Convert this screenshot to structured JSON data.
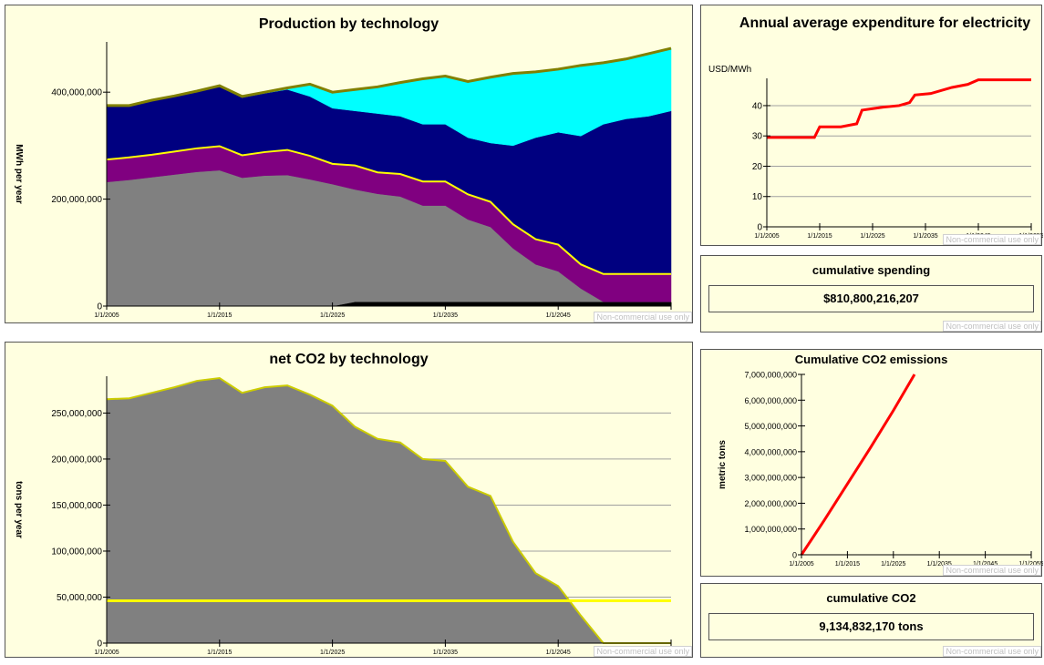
{
  "chart_data": [
    {
      "type": "area",
      "title": "Production by technology",
      "ylabel": "MWh per year",
      "grid": false,
      "x": [
        2005,
        2007,
        2009,
        2011,
        2013,
        2015,
        2017,
        2019,
        2021,
        2023,
        2025,
        2027,
        2029,
        2031,
        2033,
        2035,
        2037,
        2039,
        2041,
        2043,
        2045,
        2047,
        2049,
        2051,
        2053,
        2055
      ],
      "xlim": [
        2005,
        2055
      ],
      "xticks": [
        {
          "value": 2005,
          "label": "1/1/2005"
        },
        {
          "value": 2015,
          "label": "1/1/2015"
        },
        {
          "value": 2025,
          "label": "1/1/2025"
        },
        {
          "value": 2035,
          "label": "1/1/2035"
        },
        {
          "value": 2045,
          "label": "1/1/2045"
        },
        {
          "value": 2055,
          "label": "1/1/2055"
        }
      ],
      "ylim": [
        0,
        494000000
      ],
      "yticks": [
        0,
        {
          "value": 200000000,
          "label": "200,000,000"
        },
        {
          "value": 400000000,
          "label": "400,000,000"
        }
      ],
      "series": [
        {
          "color": "#000000",
          "values": [
            0,
            0,
            0,
            0,
            0,
            0,
            0,
            0,
            0,
            0,
            0,
            8000000,
            8000000,
            8000000,
            8000000,
            8000000,
            8000000,
            8000000,
            8000000,
            8000000,
            8000000,
            8000000,
            8000000,
            8000000,
            8000000,
            8000000
          ]
        },
        {
          "color": "#808080",
          "values": [
            232000000,
            236000000,
            241000000,
            246000000,
            251000000,
            254000000,
            240000000,
            244000000,
            245000000,
            237000000,
            228000000,
            210000000,
            202000000,
            197000000,
            180000000,
            180000000,
            154000000,
            140000000,
            100000000,
            70000000,
            57000000,
            25000000,
            0,
            0,
            0,
            0
          ]
        },
        {
          "color": "#800080",
          "line_color": "#ffff00",
          "values": [
            42000000,
            42000000,
            42000000,
            43000000,
            44000000,
            45000000,
            42000000,
            44000000,
            47000000,
            44000000,
            38000000,
            45000000,
            40000000,
            42000000,
            45000000,
            45000000,
            47000000,
            47000000,
            45000000,
            47000000,
            50000000,
            45000000,
            52000000,
            52000000,
            52000000,
            52000000
          ]
        },
        {
          "color": "#000080",
          "values": [
            101000000,
            97000000,
            102000000,
            104000000,
            107000000,
            111000000,
            108000000,
            110000000,
            113000000,
            111000000,
            104000000,
            102000000,
            110000000,
            108000000,
            107000000,
            107000000,
            106000000,
            110000000,
            147000000,
            190000000,
            210000000,
            240000000,
            280000000,
            290000000,
            295000000,
            305000000
          ]
        },
        {
          "color": "#00ffff",
          "line_color": "#808000",
          "values": [
            0,
            0,
            0,
            0,
            0,
            2000000,
            2000000,
            2000000,
            3000000,
            23000000,
            30000000,
            40000000,
            50000000,
            63000000,
            85000000,
            90000000,
            105000000,
            123000000,
            135000000,
            123000000,
            118000000,
            132000000,
            115000000,
            112000000,
            117000000,
            117000000
          ]
        }
      ]
    },
    {
      "type": "line",
      "title": "Annual average expenditure for electricity",
      "ylabel": "USD/MWh",
      "grid": true,
      "x": [
        2005,
        2014,
        2015,
        2019,
        2022,
        2023,
        2025,
        2027,
        2030,
        2032,
        2033,
        2036,
        2040,
        2043,
        2045,
        2055
      ],
      "xlim": [
        2005,
        2055
      ],
      "xticks": [
        {
          "value": 2005,
          "label": "1/1/2005"
        },
        {
          "value": 2015,
          "label": "1/1/2015"
        },
        {
          "value": 2025,
          "label": "1/1/2025"
        },
        {
          "value": 2035,
          "label": "1/1/2035"
        },
        {
          "value": 2045,
          "label": "1/1/2045"
        },
        {
          "value": 2055,
          "label": "1/1/2055"
        }
      ],
      "ylim": [
        0,
        49
      ],
      "yticks": [
        0,
        10,
        20,
        30,
        40
      ],
      "series": [
        {
          "color": "#ff0000",
          "values": [
            29.5,
            29.5,
            33,
            33,
            34,
            38.5,
            39,
            39.5,
            40,
            41,
            43.5,
            44,
            46,
            47,
            48.5,
            48.5
          ]
        }
      ]
    },
    {
      "type": "line",
      "title": "Cumulative CO2 emissions",
      "ylabel": "metric tons",
      "grid": false,
      "x": [
        2005,
        2010,
        2015,
        2020,
        2025,
        2029.6
      ],
      "xlim": [
        2005,
        2055
      ],
      "xticks": [
        {
          "value": 2005,
          "label": "1/1/2005"
        },
        {
          "value": 2015,
          "label": "1/1/2015"
        },
        {
          "value": 2025,
          "label": "1/1/2025"
        },
        {
          "value": 2035,
          "label": "1/1/2035"
        },
        {
          "value": 2045,
          "label": "1/1/2045"
        },
        {
          "value": 2055,
          "label": "1/1/2055"
        }
      ],
      "ylim": [
        0,
        7000000000
      ],
      "yticks": [
        0,
        {
          "value": 1000000000,
          "label": "1,000,000,000"
        },
        {
          "value": 2000000000,
          "label": "2,000,000,000"
        },
        {
          "value": 3000000000,
          "label": "3,000,000,000"
        },
        {
          "value": 4000000000,
          "label": "4,000,000,000"
        },
        {
          "value": 5000000000,
          "label": "5,000,000,000"
        },
        {
          "value": 6000000000,
          "label": "6,000,000,000"
        },
        {
          "value": 7000000000,
          "label": "7,000,000,000"
        }
      ],
      "series": [
        {
          "color": "#ff0000",
          "values": [
            0,
            1350000000,
            2750000000,
            4150000000,
            5600000000,
            7000000000
          ]
        }
      ]
    },
    {
      "type": "area",
      "title": "net CO2 by technology",
      "ylabel": "tons per year",
      "grid": true,
      "x": [
        2005,
        2007,
        2009,
        2011,
        2013,
        2015,
        2017,
        2019,
        2021,
        2023,
        2025,
        2027,
        2029,
        2031,
        2033,
        2035,
        2037,
        2039,
        2041,
        2043,
        2045,
        2047,
        2049,
        2051,
        2053,
        2055
      ],
      "xlim": [
        2005,
        2055
      ],
      "xticks": [
        {
          "value": 2005,
          "label": "1/1/2005"
        },
        {
          "value": 2015,
          "label": "1/1/2015"
        },
        {
          "value": 2025,
          "label": "1/1/2025"
        },
        {
          "value": 2035,
          "label": "1/1/2035"
        },
        {
          "value": 2045,
          "label": "1/1/2045"
        },
        {
          "value": 2055,
          "label": "1/1/2055"
        }
      ],
      "ylim": [
        0,
        290000000
      ],
      "yticks": [
        0,
        {
          "value": 50000000,
          "label": "50,000,000"
        },
        {
          "value": 100000000,
          "label": "100,000,000"
        },
        {
          "value": 150000000,
          "label": "150,000,000"
        },
        {
          "value": 200000000,
          "label": "200,000,000"
        },
        {
          "value": 250000000,
          "label": "250,000,000"
        }
      ],
      "series": [
        {
          "color": "#808080",
          "line_color": "#cccc00",
          "values": [
            265000000,
            266000000,
            272000000,
            278000000,
            285000000,
            288000000,
            272000000,
            278000000,
            280000000,
            270000000,
            258000000,
            235000000,
            222000000,
            218000000,
            200000000,
            198000000,
            170000000,
            160000000,
            110000000,
            76000000,
            62000000,
            30000000,
            0,
            0,
            0,
            0
          ]
        },
        {
          "type": "line",
          "color": "#ffff00",
          "x": [
            2005,
            2055
          ],
          "values": [
            46000000,
            46000000
          ]
        }
      ]
    }
  ],
  "panels": [
    {
      "title": "cumulative spending",
      "value": "$810,800,216,207"
    },
    {
      "title": "cumulative CO2",
      "value": "9,134,832,170 tons"
    }
  ],
  "watermark": "Non-commercial use only"
}
